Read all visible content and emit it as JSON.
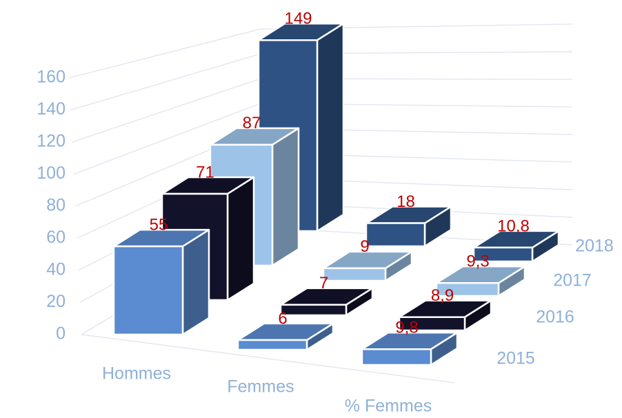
{
  "chart_data": {
    "type": "bar3d",
    "categories": [
      "Hommes",
      "Femmes",
      "% Femmes"
    ],
    "series": [
      {
        "name": "2015",
        "color": "#5b8bd0",
        "values": [
          55,
          6,
          9.8
        ],
        "value_labels": [
          "55",
          "6",
          "9,8"
        ]
      },
      {
        "name": "2016",
        "color": "#12122b",
        "values": [
          71,
          7,
          8.9
        ],
        "value_labels": [
          "71",
          "7",
          "8,9"
        ]
      },
      {
        "name": "2017",
        "color": "#9dc3e8",
        "values": [
          87,
          9,
          9.3
        ],
        "value_labels": [
          "87",
          "9",
          "9,3"
        ]
      },
      {
        "name": "2018",
        "color": "#2e5284",
        "values": [
          149,
          18,
          10.8
        ],
        "value_labels": [
          "149",
          "18",
          "10,8"
        ]
      }
    ],
    "ylim": [
      0,
      160
    ],
    "yticks": [
      0,
      20,
      40,
      60,
      80,
      100,
      120,
      140,
      160
    ],
    "grid": true
  }
}
